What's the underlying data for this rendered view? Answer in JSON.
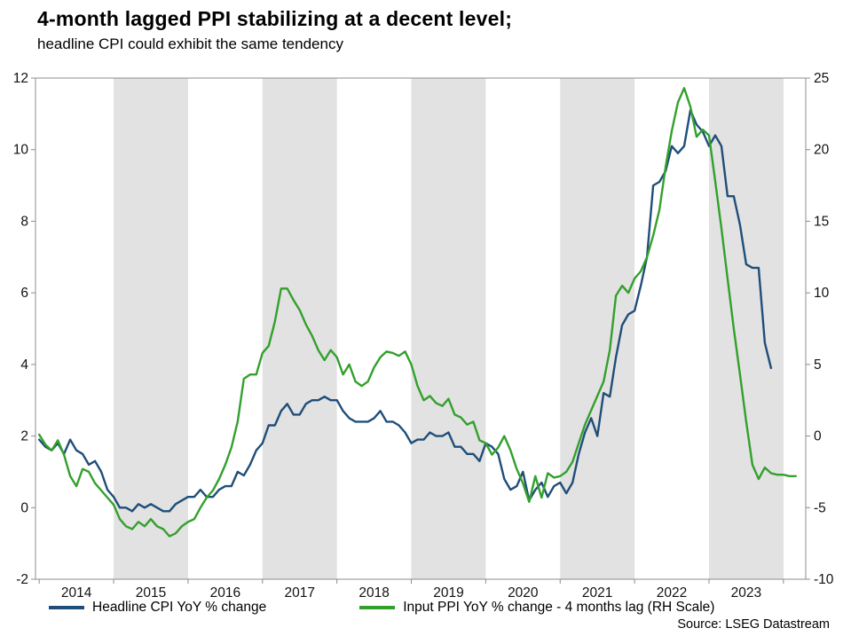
{
  "header": {
    "title": "4-month lagged PPI stabilizing at a decent level;",
    "subtitle": "headline CPI could exhibit the same tendency"
  },
  "source": "Source: LSEG Datastream",
  "legend": [
    {
      "label": "Headline CPI YoY % change",
      "color": "#1F4E79"
    },
    {
      "label": "Input PPI YoY % change - 4 months lag (RH Scale)",
      "color": "#33A02C"
    }
  ],
  "chart_data": {
    "type": "line",
    "title": "4-month lagged PPI stabilizing at a decent level;",
    "subtitle": "headline CPI could exhibit the same tendency",
    "x_range": [
      2013.95,
      2024.3
    ],
    "left_axis": {
      "min": -2,
      "max": 12,
      "ticks": [
        -2,
        0,
        2,
        4,
        6,
        8,
        10,
        12
      ]
    },
    "right_axis": {
      "min": -10,
      "max": 25,
      "ticks": [
        -10,
        -5,
        0,
        5,
        10,
        15,
        20,
        25
      ]
    },
    "x_tick_years": [
      2014,
      2015,
      2016,
      2017,
      2018,
      2019,
      2020,
      2021,
      2022,
      2023
    ],
    "shaded_years": [
      2015,
      2017,
      2019,
      2021,
      2023
    ],
    "band_color": "#E2E2E2",
    "frame_color": "#8C8C8C",
    "grid": false,
    "legend_position": "bottom",
    "series": [
      {
        "name": "Headline CPI YoY % change",
        "axis": "left",
        "color": "#1F4E79",
        "start_decimal_year": 2014.0,
        "frequency": "monthly",
        "monthly_values": [
          1.9,
          1.7,
          1.6,
          1.8,
          1.5,
          1.9,
          1.6,
          1.5,
          1.2,
          1.3,
          1.0,
          0.5,
          0.3,
          0.0,
          0.0,
          -0.1,
          0.1,
          0.0,
          0.1,
          0.0,
          -0.1,
          -0.1,
          0.1,
          0.2,
          0.3,
          0.3,
          0.5,
          0.3,
          0.3,
          0.5,
          0.6,
          0.6,
          1.0,
          0.9,
          1.2,
          1.6,
          1.8,
          2.3,
          2.3,
          2.7,
          2.9,
          2.6,
          2.6,
          2.9,
          3.0,
          3.0,
          3.1,
          3.0,
          3.0,
          2.7,
          2.5,
          2.4,
          2.4,
          2.4,
          2.5,
          2.7,
          2.4,
          2.4,
          2.3,
          2.1,
          1.8,
          1.9,
          1.9,
          2.1,
          2.0,
          2.0,
          2.1,
          1.7,
          1.7,
          1.5,
          1.5,
          1.3,
          1.8,
          1.7,
          1.5,
          0.8,
          0.5,
          0.6,
          1.0,
          0.2,
          0.5,
          0.7,
          0.3,
          0.6,
          0.7,
          0.4,
          0.7,
          1.5,
          2.1,
          2.5,
          2.0,
          3.2,
          3.1,
          4.2,
          5.1,
          5.4,
          5.5,
          6.2,
          7.0,
          9.0,
          9.1,
          9.4,
          10.1,
          9.9,
          10.1,
          11.1,
          10.7,
          10.5,
          10.1,
          10.4,
          10.1,
          8.7,
          8.7,
          7.9,
          6.8,
          6.7,
          6.7,
          4.6,
          3.9
        ]
      },
      {
        "name": "Input PPI YoY % change - 4 months lag (RH Scale)",
        "axis": "right",
        "color": "#33A02C",
        "start_decimal_year": 2014.0,
        "frequency": "monthly",
        "monthly_values": [
          0.1,
          -0.6,
          -1.0,
          -0.3,
          -1.3,
          -2.8,
          -3.5,
          -2.3,
          -2.5,
          -3.3,
          -3.8,
          -4.3,
          -4.8,
          -5.8,
          -6.3,
          -6.5,
          -6.0,
          -6.3,
          -5.8,
          -6.3,
          -6.5,
          -7.0,
          -6.8,
          -6.3,
          -6.0,
          -5.8,
          -5.0,
          -4.3,
          -3.8,
          -3.0,
          -2.0,
          -0.8,
          1.0,
          4.0,
          4.3,
          4.3,
          5.8,
          6.3,
          8.0,
          10.3,
          10.3,
          9.5,
          8.8,
          7.8,
          7.0,
          6.0,
          5.3,
          6.0,
          5.5,
          4.3,
          5.0,
          3.8,
          3.5,
          3.8,
          4.8,
          5.5,
          5.9,
          5.8,
          5.6,
          5.9,
          5.0,
          3.5,
          2.5,
          2.8,
          2.3,
          2.1,
          2.6,
          1.5,
          1.3,
          0.8,
          1.0,
          -0.3,
          -0.5,
          -1.3,
          -0.8,
          0.0,
          -1.0,
          -2.3,
          -3.3,
          -4.6,
          -2.8,
          -4.3,
          -2.6,
          -2.9,
          -2.8,
          -2.5,
          -1.8,
          -0.5,
          0.8,
          1.8,
          2.8,
          3.8,
          6.0,
          9.8,
          10.5,
          10.0,
          11.0,
          11.5,
          12.5,
          14.0,
          15.8,
          18.8,
          21.3,
          23.3,
          24.3,
          23.0,
          20.9,
          21.4,
          21.0,
          17.8,
          14.5,
          11.0,
          7.5,
          4.3,
          1.0,
          -2.0,
          -3.0,
          -2.2,
          -2.6,
          -2.7,
          -2.7,
          -2.8,
          -2.8
        ]
      }
    ]
  }
}
